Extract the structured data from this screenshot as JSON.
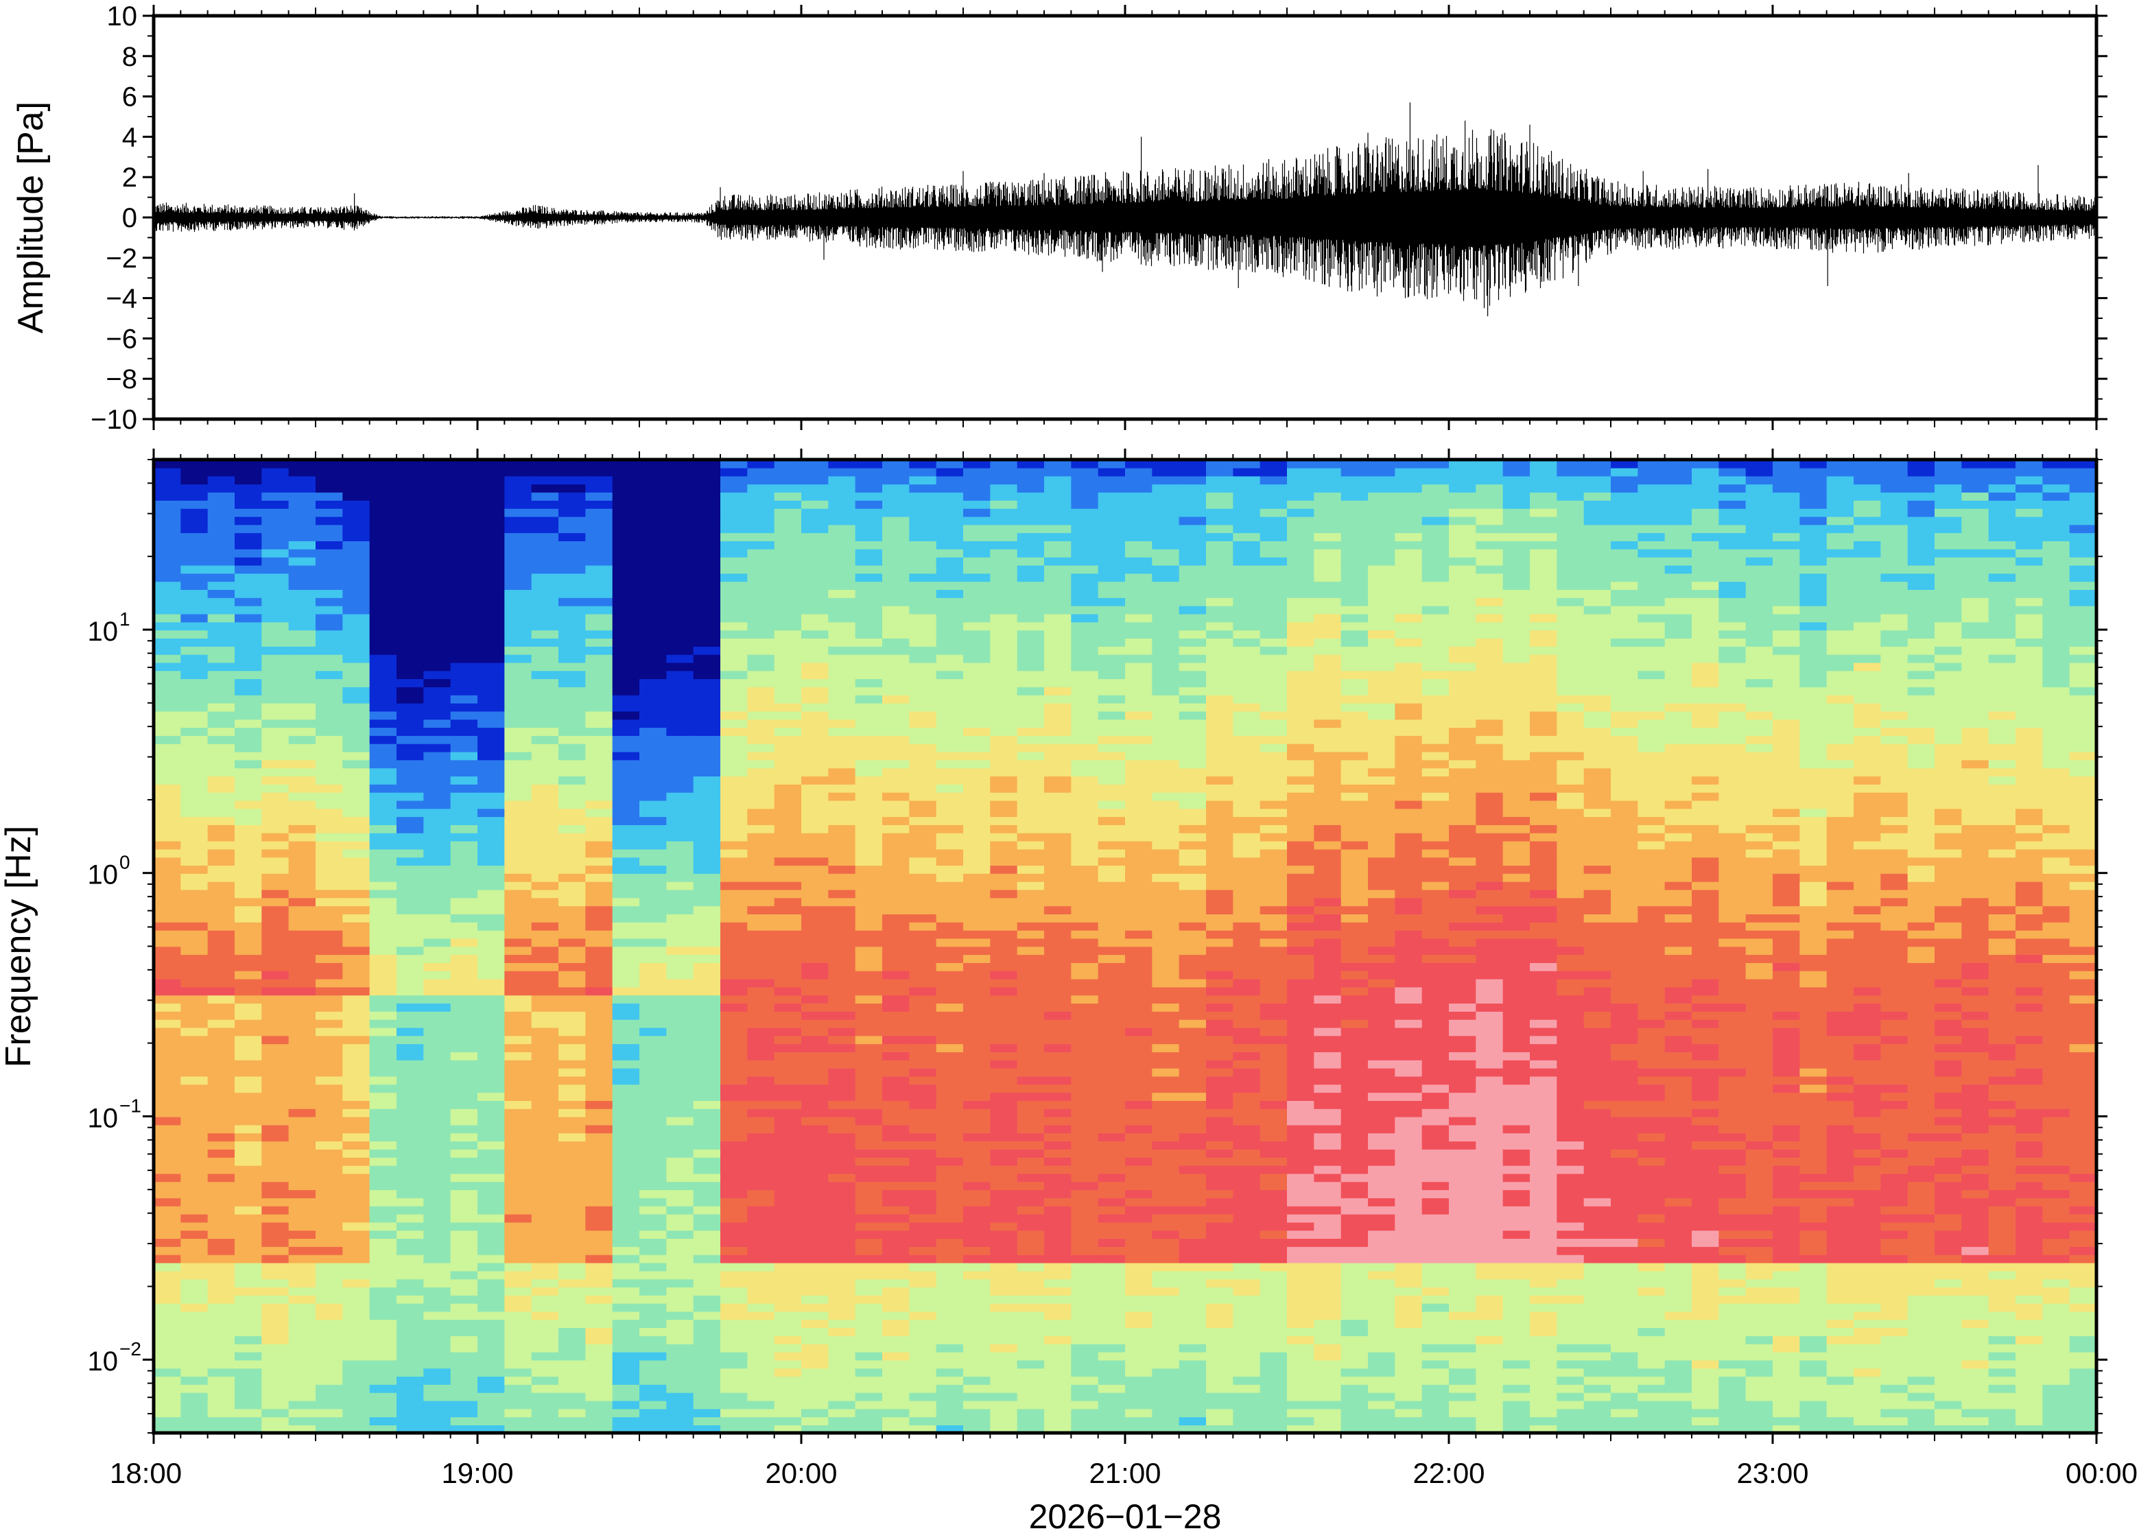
{
  "chart_data": [
    {
      "type": "line",
      "title": "",
      "ylabel": "Amplitude [Pa]",
      "ylim": [
        -10,
        10
      ],
      "yticks": [
        -10,
        -8,
        -6,
        -4,
        -2,
        0,
        2,
        4,
        6,
        8,
        10
      ],
      "ytick_labels": [
        "−10",
        "−8",
        "−6",
        "−4",
        "−2",
        "0",
        "2",
        "4",
        "6",
        "8",
        "10"
      ],
      "xlim_hours": [
        18,
        24
      ],
      "series": [
        {
          "envelope_hours": [
            18.0,
            18.25,
            18.5,
            18.62,
            18.7,
            19.0,
            19.18,
            19.25,
            19.5,
            19.7,
            19.75,
            20.0,
            20.25,
            20.5,
            20.75,
            21.0,
            21.25,
            21.5,
            21.75,
            22.0,
            22.1,
            22.25,
            22.4,
            22.5,
            22.75,
            23.0,
            23.25,
            23.5,
            23.75,
            24.0
          ],
          "envelope_pa": [
            0.6,
            0.5,
            0.4,
            0.5,
            0.05,
            0.05,
            0.5,
            0.35,
            0.2,
            0.2,
            0.9,
            0.9,
            1.2,
            1.3,
            1.5,
            1.8,
            2.0,
            2.3,
            3.0,
            3.3,
            3.5,
            3.0,
            2.0,
            1.4,
            1.2,
            1.2,
            1.4,
            1.2,
            1.0,
            0.8
          ],
          "peaks_hours": [
            18.62,
            19.75,
            20.07,
            20.5,
            20.75,
            20.93,
            21.05,
            21.35,
            21.75,
            21.88,
            22.05,
            22.12,
            22.25,
            22.4,
            22.6,
            22.8,
            23.17,
            23.42,
            23.82
          ],
          "peaks_pa": [
            1.2,
            1.5,
            -2.1,
            2.3,
            2.2,
            -2.7,
            4.0,
            -3.5,
            4.2,
            5.7,
            4.8,
            -4.9,
            4.6,
            -3.4,
            2.3,
            2.4,
            -3.4,
            2.2,
            2.6
          ]
        }
      ]
    },
    {
      "type": "heatmap",
      "title": "",
      "xlabel": "2026−01−28",
      "ylabel": "Frequency [Hz]",
      "yscale": "log",
      "ylim": [
        0.005,
        50
      ],
      "yticks": [
        0.01,
        0.1,
        1,
        10
      ],
      "ytick_labels": [
        {
          "base": "10",
          "exp": "−2"
        },
        {
          "base": "10",
          "exp": "−1"
        },
        {
          "base": "10",
          "exp": "0"
        },
        {
          "base": "10",
          "exp": "1"
        }
      ],
      "xlim_hours": [
        18,
        24
      ],
      "xticks_hours": [
        18,
        19,
        20,
        21,
        22,
        23,
        24
      ],
      "xtick_labels": [
        "18:00",
        "19:00",
        "20:00",
        "21:00",
        "22:00",
        "23:00",
        "00:00"
      ],
      "colormap": [
        "#08088a",
        "#0a2ad6",
        "#2a78ee",
        "#41c6ee",
        "#8ee6b4",
        "#cdf59a",
        "#f5e47a",
        "#f8b052",
        "#f06a48",
        "#f0505a",
        "#f8a0aa"
      ],
      "time_columns": 72,
      "column_hours": 0.0833,
      "quiet_intervals_hours": [
        [
          18.7,
          19.12
        ],
        [
          19.45,
          19.72
        ]
      ],
      "active_interval_hours": [
        21.6,
        22.4
      ],
      "notes": "power increases toward lower frequency; max near 0.03-0.3 Hz around 22:00"
    }
  ]
}
